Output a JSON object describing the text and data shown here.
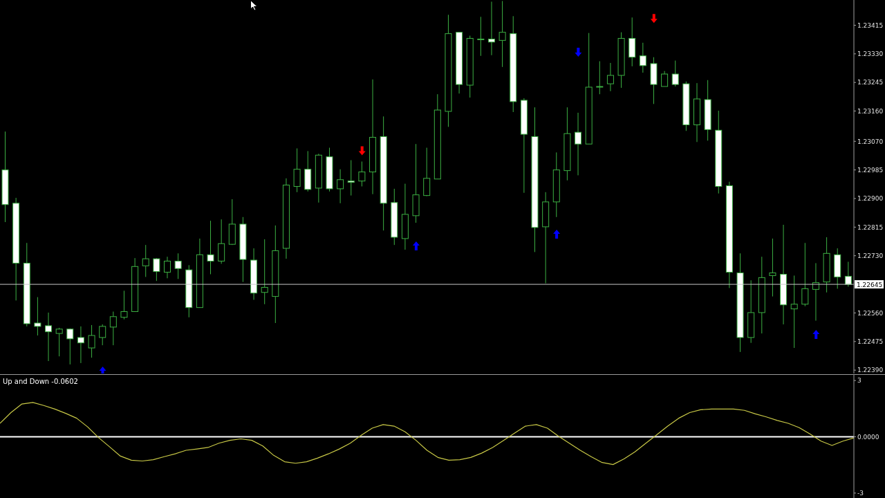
{
  "chart_data": [
    {
      "type": "candlestick",
      "color": "#3cb043",
      "tick_labels": "y",
      "categories": [
        null,
        null,
        null,
        null,
        null,
        null,
        null,
        null,
        null,
        null,
        null,
        null,
        null,
        null,
        null,
        null,
        null,
        null,
        null,
        null,
        null,
        null,
        null,
        null,
        null,
        null,
        null,
        null,
        null,
        null,
        null,
        null,
        null,
        null,
        null,
        null,
        null,
        null,
        null,
        null,
        null,
        null,
        null,
        null,
        null,
        null,
        null,
        null,
        null,
        null,
        null,
        null,
        null,
        null,
        null,
        null,
        null,
        null,
        null,
        null,
        null,
        null,
        null,
        null,
        null,
        null,
        null,
        null,
        null,
        null,
        null,
        null,
        null,
        null,
        null,
        null,
        null,
        null,
        null
      ],
      "ohlc": [
        [
          1.22985,
          1.23099,
          1.2283,
          1.22882
        ],
        [
          1.22886,
          1.22902,
          1.22597,
          1.22708
        ],
        [
          1.22708,
          1.22768,
          1.2252,
          1.22528
        ],
        [
          1.2253,
          1.22607,
          1.22493,
          1.2252
        ],
        [
          1.22522,
          1.22561,
          1.22417,
          1.22504
        ],
        [
          1.22499,
          1.22516,
          1.22431,
          1.22512
        ],
        [
          1.22512,
          1.22514,
          1.22407,
          1.22483
        ],
        [
          1.22487,
          1.2252,
          1.22411,
          1.22471
        ],
        [
          1.22456,
          1.22524,
          1.22427,
          1.22493
        ],
        [
          1.22487,
          1.22526,
          1.22464,
          1.2252
        ],
        [
          1.22518,
          1.22564,
          1.22464,
          1.22549
        ],
        [
          1.22547,
          1.22626,
          1.22541,
          1.22564
        ],
        [
          1.22564,
          1.22723,
          1.22564,
          1.22698
        ],
        [
          1.227,
          1.22762,
          1.22667,
          1.22721
        ],
        [
          1.22721,
          1.22723,
          1.22655,
          1.22683
        ],
        [
          1.22681,
          1.22727,
          1.22663,
          1.22714
        ],
        [
          1.22714,
          1.22737,
          1.22661,
          1.22692
        ],
        [
          1.22688,
          1.22702,
          1.22547,
          1.22576
        ],
        [
          1.22576,
          1.22781,
          1.22576,
          1.22733
        ],
        [
          1.22733,
          1.22834,
          1.22675,
          1.22714
        ],
        [
          1.22714,
          1.22838,
          1.22706,
          1.22766
        ],
        [
          1.22764,
          1.22898,
          1.22762,
          1.22824
        ],
        [
          1.22824,
          1.22845,
          1.22652,
          1.22719
        ],
        [
          1.22717,
          1.22752,
          1.22599,
          1.22619
        ],
        [
          1.22621,
          1.22779,
          1.22586,
          1.22636
        ],
        [
          1.22609,
          1.2282,
          1.2253,
          1.22745
        ],
        [
          1.22752,
          1.2296,
          1.22721,
          1.2294
        ],
        [
          1.22936,
          1.23049,
          1.22919,
          1.22987
        ],
        [
          1.22987,
          1.23041,
          1.22921,
          1.22927
        ],
        [
          1.22931,
          1.23033,
          1.22888,
          1.23029
        ],
        [
          1.23024,
          1.23051,
          1.22921,
          1.22929
        ],
        [
          1.22929,
          1.22987,
          1.22886,
          1.22956
        ],
        [
          1.22952,
          1.23014,
          1.22909,
          1.22948
        ],
        [
          1.22952,
          1.2301,
          1.22936,
          1.22979
        ],
        [
          1.22979,
          1.23254,
          1.22913,
          1.23082
        ],
        [
          1.23084,
          1.23144,
          1.22805,
          1.22886
        ],
        [
          1.22888,
          1.22929,
          1.22762,
          1.22785
        ],
        [
          1.22781,
          1.22944,
          1.22748,
          1.22853
        ],
        [
          1.22849,
          1.23062,
          1.22828,
          1.22911
        ],
        [
          1.22909,
          1.23051,
          1.22907,
          1.2296
        ],
        [
          1.22958,
          1.2321,
          1.22958,
          1.23163
        ],
        [
          1.23159,
          1.23446,
          1.23113,
          1.2339
        ],
        [
          1.23394,
          1.23394,
          1.23212,
          1.23239
        ],
        [
          1.23237,
          1.23384,
          1.232,
          1.23376
        ],
        [
          1.23374,
          1.2344,
          1.23324,
          1.23374
        ],
        [
          1.23374,
          1.23485,
          1.23326,
          1.23365
        ],
        [
          1.2337,
          1.23487,
          1.23291,
          1.23394
        ],
        [
          1.2339,
          1.23442,
          1.23157,
          1.23188
        ],
        [
          1.23192,
          1.23198,
          1.22917,
          1.23091
        ],
        [
          1.23084,
          1.23171,
          1.22741,
          1.22814
        ],
        [
          1.22816,
          1.22919,
          1.22648,
          1.2289
        ],
        [
          1.2289,
          1.23037,
          1.22845,
          1.22985
        ],
        [
          1.22983,
          1.23171,
          1.22954,
          1.23093
        ],
        [
          1.23097,
          1.23155,
          1.22969,
          1.23062
        ],
        [
          1.23062,
          1.23392,
          1.23062,
          1.23231
        ],
        [
          1.23233,
          1.23308,
          1.2321,
          1.23233
        ],
        [
          1.23241,
          1.23303,
          1.23219,
          1.23266
        ],
        [
          1.23266,
          1.23394,
          1.23229,
          1.23376
        ],
        [
          1.23376,
          1.23438,
          1.23293,
          1.2332
        ],
        [
          1.23324,
          1.23363,
          1.23274,
          1.23295
        ],
        [
          1.23301,
          1.2332,
          1.23181,
          1.23239
        ],
        [
          1.23233,
          1.23279,
          1.23233,
          1.2327
        ],
        [
          1.2327,
          1.2331,
          1.23233,
          1.23239
        ],
        [
          1.23241,
          1.23248,
          1.23101,
          1.23119
        ],
        [
          1.23119,
          1.23243,
          1.23068,
          1.23196
        ],
        [
          1.23194,
          1.23252,
          1.23072,
          1.23105
        ],
        [
          1.23103,
          1.23161,
          1.22915,
          1.22936
        ],
        [
          1.22938,
          1.2295,
          1.22634,
          1.22681
        ],
        [
          1.22679,
          1.22737,
          1.22444,
          1.22487
        ],
        [
          1.22487,
          1.22657,
          1.22471,
          1.22561
        ],
        [
          1.22561,
          1.22727,
          1.22499,
          1.22665
        ],
        [
          1.22671,
          1.22781,
          1.22609,
          1.22679
        ],
        [
          1.22675,
          1.22822,
          1.22526,
          1.22584
        ],
        [
          1.22572,
          1.22671,
          1.22456,
          1.22586
        ],
        [
          1.22586,
          1.22768,
          1.2258,
          1.22632
        ],
        [
          1.2263,
          1.22708,
          1.22537,
          1.2265
        ],
        [
          1.22652,
          1.22785,
          1.22621,
          1.22737
        ],
        [
          1.22733,
          1.22752,
          1.22632,
          1.22667
        ],
        [
          1.22669,
          1.22712,
          1.22638,
          1.22645
        ]
      ],
      "ylim": [
        1.2238,
        1.2349
      ],
      "yticks": [
        1.23415,
        {
          "value": 1.2333,
          "label": "1.23330"
        },
        1.23245,
        {
          "value": 1.2316,
          "label": "1.23160"
        },
        {
          "value": 1.2307,
          "label": "1.23070"
        },
        1.22985,
        {
          "value": 1.229,
          "label": "1.22900"
        },
        1.22815,
        {
          "value": 1.2273,
          "label": "1.22730"
        },
        {
          "value": 1.2256,
          "label": "1.22560"
        },
        1.22475,
        {
          "value": 1.2239,
          "label": "1.22390"
        }
      ],
      "ref_lines": [
        {
          "axis": "y",
          "value": 1.22645,
          "label": "1.22645",
          "color": "#c8c8c8"
        }
      ],
      "series": [
        {
          "type": "scatter",
          "color": "#ff0000",
          "marker": "triangle",
          "values": [
            null,
            null,
            null,
            null,
            null,
            null,
            null,
            null,
            null,
            null,
            null,
            null,
            null,
            null,
            null,
            null,
            null,
            null,
            null,
            null,
            null,
            null,
            null,
            null,
            null,
            null,
            null,
            null,
            null,
            null,
            null,
            null,
            null,
            1.23043,
            null,
            null,
            null,
            null,
            null,
            null,
            null,
            null,
            null,
            null,
            null,
            null,
            null,
            null,
            null,
            null,
            null,
            null,
            null,
            null,
            null,
            null,
            null,
            null,
            null,
            null,
            1.23436,
            null,
            null,
            null,
            null,
            null,
            null,
            null,
            null,
            null,
            null,
            null,
            null,
            null,
            null,
            null,
            null,
            null,
            null
          ]
        },
        {
          "type": "scatter",
          "color": "#0000ff",
          "marker": "triangle",
          "values": [
            null,
            null,
            null,
            null,
            null,
            null,
            null,
            null,
            null,
            1.22386,
            null,
            null,
            null,
            null,
            null,
            null,
            null,
            null,
            null,
            null,
            null,
            null,
            null,
            null,
            null,
            null,
            null,
            null,
            null,
            null,
            null,
            null,
            null,
            null,
            null,
            null,
            null,
            null,
            1.22758,
            null,
            null,
            null,
            null,
            null,
            null,
            null,
            null,
            null,
            null,
            null,
            null,
            1.22793,
            null,
            1.23336,
            null,
            null,
            null,
            null,
            null,
            null,
            null,
            null,
            null,
            null,
            null,
            null,
            null,
            null,
            null,
            null,
            null,
            null,
            null,
            null,
            null,
            1.22495,
            null,
            null,
            null
          ]
        }
      ]
    },
    {
      "type": "line",
      "title": "Up and Down -0.0602",
      "color": "#c8c846",
      "tick_labels": "y",
      "categories": [
        null,
        null,
        null,
        null,
        null,
        null,
        null,
        null,
        null,
        null,
        null,
        null,
        null,
        null,
        null,
        null,
        null,
        null,
        null,
        null,
        null,
        null,
        null,
        null,
        null,
        null,
        null,
        null,
        null,
        null,
        null,
        null,
        null,
        null,
        null,
        null,
        null,
        null,
        null,
        null,
        null,
        null,
        null,
        null,
        null,
        null,
        null,
        null,
        null,
        null,
        null,
        null,
        null,
        null,
        null,
        null,
        null,
        null,
        null,
        null,
        null,
        null,
        null,
        null,
        null,
        null,
        null,
        null,
        null,
        null,
        null,
        null,
        null,
        null,
        null,
        null,
        null,
        null,
        null
      ],
      "values": [
        0.72,
        1.29,
        1.75,
        1.83,
        1.67,
        1.48,
        1.25,
        0.99,
        0.53,
        -0.04,
        -0.53,
        -1.03,
        -1.25,
        -1.29,
        -1.22,
        -1.06,
        -0.91,
        -0.72,
        -0.65,
        -0.57,
        -0.34,
        -0.19,
        -0.11,
        -0.19,
        -0.49,
        -0.99,
        -1.33,
        -1.41,
        -1.33,
        -1.14,
        -0.91,
        -0.65,
        -0.34,
        0.08,
        0.46,
        0.65,
        0.57,
        0.27,
        -0.19,
        -0.72,
        -1.1,
        -1.25,
        -1.22,
        -1.1,
        -0.87,
        -0.57,
        -0.19,
        0.19,
        0.57,
        0.65,
        0.46,
        0.04,
        -0.34,
        -0.72,
        -1.06,
        -1.37,
        -1.48,
        -1.18,
        -0.8,
        -0.34,
        0.11,
        0.57,
        0.99,
        1.29,
        1.44,
        1.48,
        1.48,
        1.48,
        1.41,
        1.22,
        1.06,
        0.87,
        0.72,
        0.49,
        0.15,
        -0.23,
        -0.46,
        -0.23,
        -0.06
      ],
      "ylim": [
        -3.3,
        3.3
      ],
      "yticks": [
        3,
        {
          "value": 0,
          "label": "0.0000"
        },
        -3
      ],
      "ref_lines": [
        {
          "axis": "y",
          "value": 0,
          "color": "#ffffff"
        }
      ]
    }
  ]
}
